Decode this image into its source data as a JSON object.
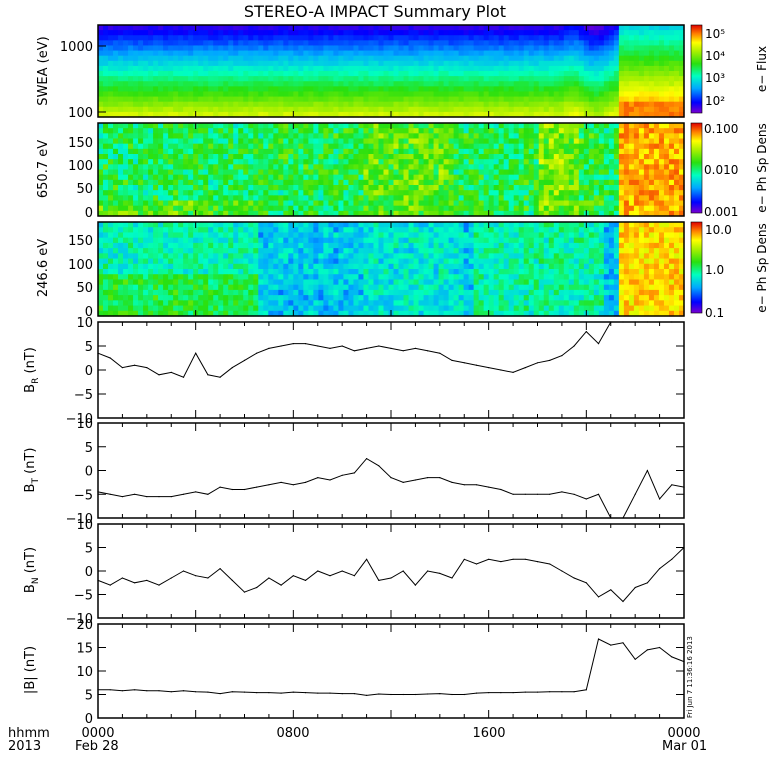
{
  "title": "STEREO-A IMPACT Summary Plot",
  "footer": {
    "hhmm": "hhmm",
    "year": "2013",
    "start_date": "Feb 28",
    "end_date": "Mar 01",
    "x_ticks": [
      "0000",
      "0800",
      "1600",
      "0000"
    ],
    "side_stamp": "Fri Jun  7 11:36:16 2013"
  },
  "chart_data": [
    {
      "type": "heatmap",
      "ylabel": "SWEA (eV)",
      "colorbar_label": "e− Flux",
      "y_scale": "log",
      "y_ticks": [
        "1000",
        "100"
      ],
      "colorbar_ticks": [
        "10⁵",
        "10⁴",
        "10³",
        "10²"
      ],
      "x_range_hours": [
        0,
        24
      ]
    },
    {
      "type": "heatmap",
      "ylabel": "650.7 eV",
      "colorbar_label": "e− Ph Sp Dens",
      "y_ticks": [
        "150",
        "100",
        "50",
        "0"
      ],
      "ylim": [
        0,
        180
      ],
      "colorbar_ticks": [
        "0.100",
        "0.010",
        "0.001"
      ],
      "x_range_hours": [
        0,
        24
      ]
    },
    {
      "type": "heatmap",
      "ylabel": "246.6 eV",
      "colorbar_label": "e− Ph Sp Dens",
      "y_ticks": [
        "150",
        "100",
        "50",
        "0"
      ],
      "ylim": [
        0,
        180
      ],
      "colorbar_ticks": [
        "10.0",
        "1.0",
        "0.1"
      ],
      "x_range_hours": [
        0,
        24
      ]
    },
    {
      "type": "line",
      "ylabel": "B",
      "ylabel_sub": "R",
      "ylabel_unit": " (nT)",
      "ylim": [
        -10,
        10
      ],
      "y_ticks": [
        "10",
        "5",
        "0",
        "−5",
        "−10"
      ],
      "x": [
        0,
        0.5,
        1,
        1.5,
        2,
        2.5,
        3,
        3.5,
        4,
        4.5,
        5,
        5.5,
        6,
        6.5,
        7,
        7.5,
        8,
        8.5,
        9,
        9.5,
        10,
        10.5,
        11,
        11.5,
        12,
        12.5,
        13,
        13.5,
        14,
        14.5,
        15,
        15.5,
        16,
        16.5,
        17,
        17.5,
        18,
        18.5,
        19,
        19.5,
        20,
        20.5,
        21,
        21.5,
        22,
        22.5,
        23,
        23.5,
        24
      ],
      "values": [
        3.5,
        2.5,
        0.5,
        1,
        0.5,
        -1,
        -0.5,
        -1.5,
        3.5,
        -1,
        -1.5,
        0.5,
        2,
        3.5,
        4.5,
        5,
        5.5,
        5.5,
        5,
        4.5,
        5,
        4,
        4.5,
        5,
        4.5,
        4,
        4.5,
        4,
        3.5,
        2,
        1.5,
        1,
        0.5,
        0,
        -0.5,
        0.5,
        1.5,
        2,
        3,
        5,
        8,
        5.5,
        10,
        10,
        10,
        10,
        10,
        10,
        10
      ]
    },
    {
      "type": "line",
      "ylabel": "B",
      "ylabel_sub": "T",
      "ylabel_unit": " (nT)",
      "ylim": [
        -10,
        10
      ],
      "y_ticks": [
        "10",
        "5",
        "0",
        "−5",
        "−10"
      ],
      "x": [
        0,
        0.5,
        1,
        1.5,
        2,
        2.5,
        3,
        3.5,
        4,
        4.5,
        5,
        5.5,
        6,
        6.5,
        7,
        7.5,
        8,
        8.5,
        9,
        9.5,
        10,
        10.5,
        11,
        11.5,
        12,
        12.5,
        13,
        13.5,
        14,
        14.5,
        15,
        15.5,
        16,
        16.5,
        17,
        17.5,
        18,
        18.5,
        19,
        19.5,
        20,
        20.5,
        21,
        21.5,
        22,
        22.5,
        23,
        23.5,
        24
      ],
      "values": [
        -4.5,
        -5,
        -5.5,
        -5,
        -5.5,
        -5.5,
        -5.5,
        -5,
        -4.5,
        -5,
        -3.5,
        -4,
        -4,
        -3.5,
        -3,
        -2.5,
        -3,
        -2.5,
        -1.5,
        -2,
        -1,
        -0.5,
        2.5,
        1,
        -1.5,
        -2.5,
        -2,
        -1.5,
        -1.5,
        -2.5,
        -3,
        -3,
        -3.5,
        -4,
        -5,
        -5,
        -5,
        -5,
        -4.5,
        -5,
        -6,
        -5,
        -10,
        -10,
        -5,
        0,
        -6,
        -3,
        -3.5
      ]
    },
    {
      "type": "line",
      "ylabel": "B",
      "ylabel_sub": "N",
      "ylabel_unit": " (nT)",
      "ylim": [
        -10,
        10
      ],
      "y_ticks": [
        "10",
        "5",
        "0",
        "−5",
        "−10"
      ],
      "x": [
        0,
        0.5,
        1,
        1.5,
        2,
        2.5,
        3,
        3.5,
        4,
        4.5,
        5,
        5.5,
        6,
        6.5,
        7,
        7.5,
        8,
        8.5,
        9,
        9.5,
        10,
        10.5,
        11,
        11.5,
        12,
        12.5,
        13,
        13.5,
        14,
        14.5,
        15,
        15.5,
        16,
        16.5,
        17,
        17.5,
        18,
        18.5,
        19,
        19.5,
        20,
        20.5,
        21,
        21.5,
        22,
        22.5,
        23,
        23.5,
        24
      ],
      "values": [
        -2,
        -3,
        -1.5,
        -2.5,
        -2,
        -3,
        -1.5,
        0,
        -1,
        -1.5,
        0.5,
        -2,
        -4.5,
        -3.5,
        -1.5,
        -3,
        -1,
        -2,
        0,
        -1,
        0,
        -1,
        2.5,
        -2,
        -1.5,
        0,
        -3,
        0,
        -0.5,
        -1.5,
        2.5,
        1.5,
        2.5,
        2,
        2.5,
        2.5,
        2,
        1.5,
        0,
        -1.5,
        -2.5,
        -5.5,
        -4,
        -6.5,
        -3.5,
        -2.5,
        0.5,
        2.5,
        5
      ]
    },
    {
      "type": "line",
      "ylabel": "|B| (nT)",
      "ylim": [
        0,
        20
      ],
      "y_ticks": [
        "20",
        "15",
        "10",
        "5",
        "0"
      ],
      "x": [
        0,
        0.5,
        1,
        1.5,
        2,
        2.5,
        3,
        3.5,
        4,
        4.5,
        5,
        5.5,
        6,
        6.5,
        7,
        7.5,
        8,
        8.5,
        9,
        9.5,
        10,
        10.5,
        11,
        11.5,
        12,
        12.5,
        13,
        13.5,
        14,
        14.5,
        15,
        15.5,
        16,
        16.5,
        17,
        17.5,
        18,
        18.5,
        19,
        19.5,
        20,
        20.5,
        21,
        21.5,
        22,
        22.5,
        23,
        23.5,
        24
      ],
      "values": [
        6,
        6,
        5.8,
        6,
        5.8,
        5.8,
        5.6,
        5.8,
        5.6,
        5.5,
        5.2,
        5.6,
        5.5,
        5.4,
        5.4,
        5.3,
        5.5,
        5.4,
        5.3,
        5.3,
        5.2,
        5.2,
        4.8,
        5.1,
        5,
        5,
        5,
        5.1,
        5.2,
        5,
        5,
        5.3,
        5.4,
        5.4,
        5.4,
        5.5,
        5.5,
        5.6,
        5.6,
        5.6,
        6,
        16.8,
        15.5,
        16,
        12.5,
        14.5,
        15,
        13,
        12
      ]
    }
  ]
}
